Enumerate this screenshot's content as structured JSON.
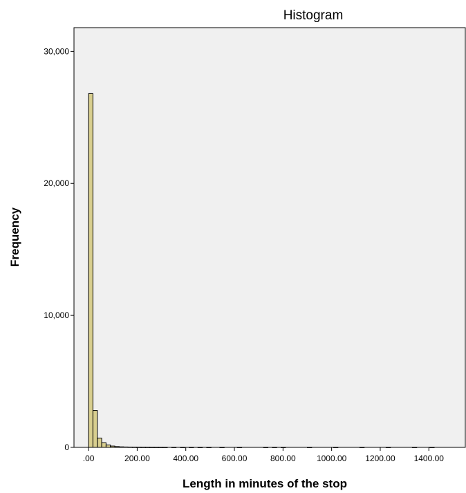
{
  "chart_data": {
    "type": "bar",
    "title": "Histogram",
    "xlabel": "Length in minutes of the stop",
    "ylabel": "Frequency",
    "xlim": [
      -60,
      1550
    ],
    "ylim": [
      0,
      31800
    ],
    "bin_width": 18,
    "x_ticks": [
      0,
      200,
      400,
      600,
      800,
      1000,
      1200,
      1400
    ],
    "x_tick_labels": [
      ".00",
      "200.00",
      "400.00",
      "600.00",
      "800.00",
      "1000.00",
      "1200.00",
      "1400.00"
    ],
    "y_ticks": [
      0,
      10000,
      20000,
      30000
    ],
    "y_tick_labels": [
      "0",
      "10,000",
      "20,000",
      "30,000"
    ],
    "bins": [
      {
        "x": 0,
        "value": 26800
      },
      {
        "x": 18,
        "value": 2800
      },
      {
        "x": 36,
        "value": 700
      },
      {
        "x": 54,
        "value": 350
      },
      {
        "x": 72,
        "value": 180
      },
      {
        "x": 90,
        "value": 100
      },
      {
        "x": 108,
        "value": 60
      },
      {
        "x": 126,
        "value": 40
      },
      {
        "x": 144,
        "value": 30
      },
      {
        "x": 162,
        "value": 20
      },
      {
        "x": 180,
        "value": 15
      },
      {
        "x": 198,
        "value": 12
      },
      {
        "x": 216,
        "value": 10
      },
      {
        "x": 234,
        "value": 8
      },
      {
        "x": 252,
        "value": 6
      },
      {
        "x": 270,
        "value": 5
      },
      {
        "x": 288,
        "value": 5
      },
      {
        "x": 306,
        "value": 4
      },
      {
        "x": 342,
        "value": 4
      },
      {
        "x": 378,
        "value": 3
      },
      {
        "x": 414,
        "value": 3
      },
      {
        "x": 450,
        "value": 3
      },
      {
        "x": 486,
        "value": 2
      },
      {
        "x": 540,
        "value": 2
      },
      {
        "x": 612,
        "value": 2
      },
      {
        "x": 720,
        "value": 2
      },
      {
        "x": 756,
        "value": 3
      },
      {
        "x": 792,
        "value": 2
      },
      {
        "x": 900,
        "value": 2
      },
      {
        "x": 1008,
        "value": 2
      },
      {
        "x": 1116,
        "value": 2
      },
      {
        "x": 1224,
        "value": 2
      },
      {
        "x": 1332,
        "value": 2
      },
      {
        "x": 1404,
        "value": 2
      }
    ],
    "grid": false,
    "legend": "none",
    "colors": {
      "bar": "#d9cf8f",
      "plot_background": "#f0f0f0"
    }
  }
}
